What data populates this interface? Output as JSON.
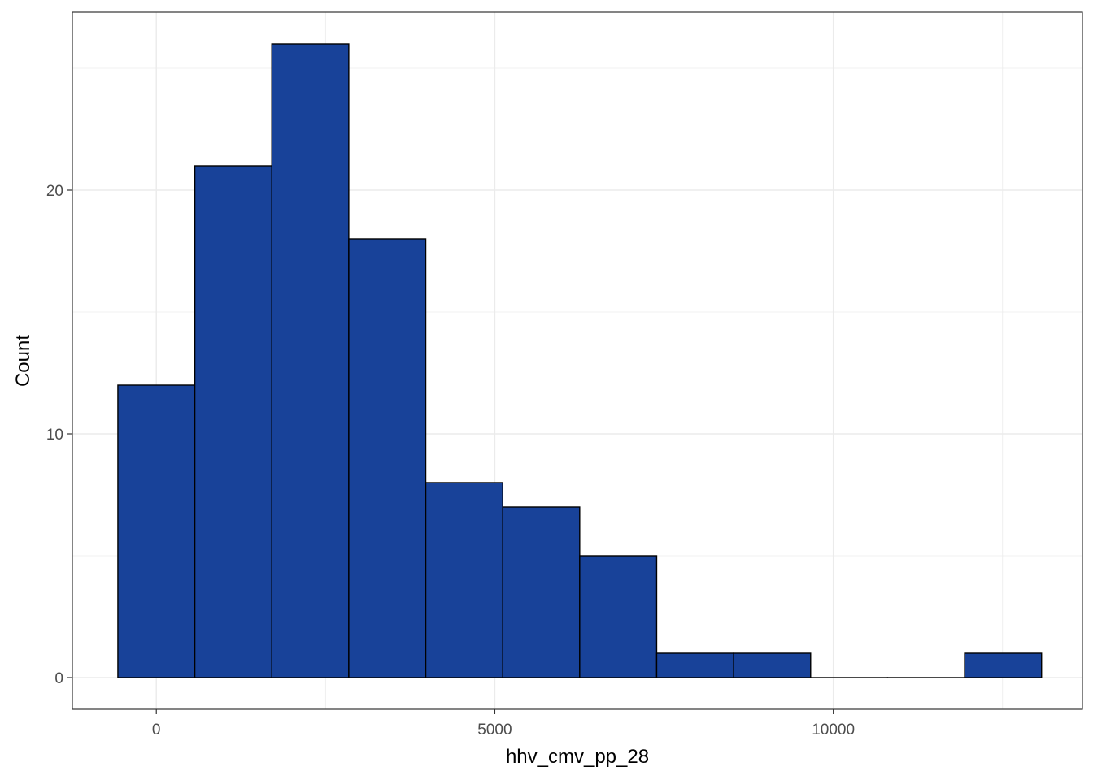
{
  "chart_data": {
    "type": "bar",
    "subtype": "histogram",
    "xlabel": "hhv_cmv_pp_28",
    "ylabel": "Count",
    "xlim": [
      -1240,
      13680
    ],
    "ylim": [
      -1.3,
      27.3
    ],
    "x_ticks": [
      0,
      5000,
      10000
    ],
    "x_tick_labels": [
      "0",
      "5000",
      "10000"
    ],
    "y_ticks": [
      0,
      10,
      20
    ],
    "y_tick_labels": [
      "0",
      "10",
      "20"
    ],
    "bin_width": 1137,
    "bins": [
      {
        "x0": -568,
        "x1": 569,
        "count": 12
      },
      {
        "x0": 569,
        "x1": 1706,
        "count": 21
      },
      {
        "x0": 1706,
        "x1": 2843,
        "count": 26
      },
      {
        "x0": 2843,
        "x1": 3980,
        "count": 18
      },
      {
        "x0": 3980,
        "x1": 5117,
        "count": 8
      },
      {
        "x0": 5117,
        "x1": 6254,
        "count": 7
      },
      {
        "x0": 6254,
        "x1": 7391,
        "count": 5
      },
      {
        "x0": 7391,
        "x1": 8528,
        "count": 1
      },
      {
        "x0": 8528,
        "x1": 9665,
        "count": 1
      },
      {
        "x0": 9665,
        "x1": 10802,
        "count": 0
      },
      {
        "x0": 10802,
        "x1": 11939,
        "count": 0
      },
      {
        "x0": 11939,
        "x1": 13076,
        "count": 1
      }
    ],
    "colors": {
      "bar_fill": "#184299",
      "bar_stroke": "#000000",
      "panel_border": "#333333",
      "grid": "#ebebeb",
      "tick_text": "#4d4d4d"
    },
    "grid": true,
    "legend": "none"
  }
}
